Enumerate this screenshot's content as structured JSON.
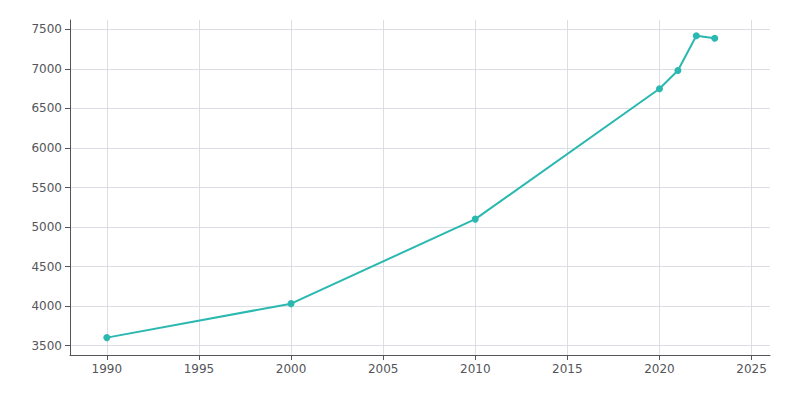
{
  "chart_data": {
    "type": "line",
    "x": [
      1990,
      2000,
      2010,
      2020,
      2021,
      2022,
      2023
    ],
    "values": [
      3600,
      4030,
      5100,
      6750,
      6980,
      7420,
      7390
    ],
    "color": "#2ab8b0",
    "marker": "circle",
    "xlim": [
      1988,
      2026
    ],
    "xticks": [
      1990,
      1995,
      2000,
      2005,
      2010,
      2015,
      2020,
      2025
    ],
    "ylim": [
      3380,
      7620
    ],
    "yticks": [
      3500,
      4000,
      4500,
      5000,
      5500,
      6000,
      6500,
      7000,
      7500
    ],
    "grid": true
  }
}
